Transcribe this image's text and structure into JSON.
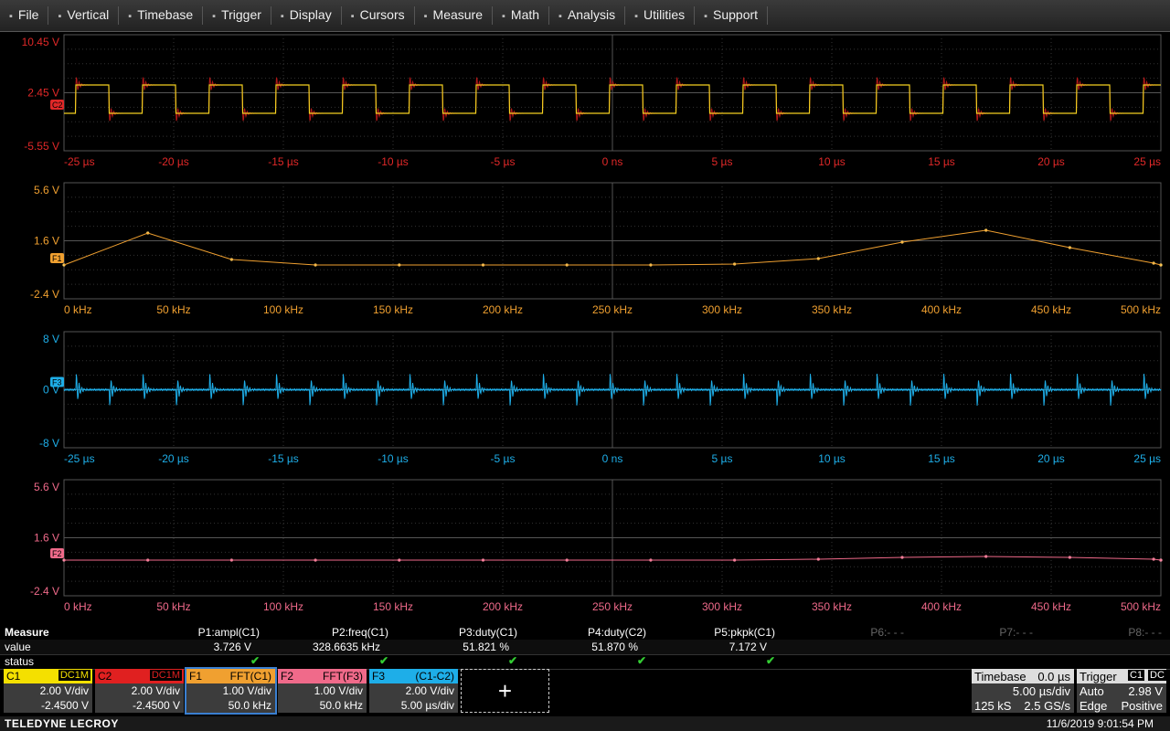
{
  "menu": [
    "File",
    "Vertical",
    "Timebase",
    "Trigger",
    "Display",
    "Cursors",
    "Measure",
    "Math",
    "Analysis",
    "Utilities",
    "Support"
  ],
  "panels": [
    {
      "trace_label": "C2",
      "y_labels": [
        "10.45 V",
        "2.45 V",
        "-5.55 V"
      ],
      "x_labels": [
        "-25 µs",
        "-20 µs",
        "-15 µs",
        "-10 µs",
        "-5 µs",
        "0 ns",
        "5 µs",
        "10 µs",
        "15 µs",
        "20 µs",
        "25 µs"
      ]
    },
    {
      "trace_label": "F1",
      "y_labels": [
        "5.6 V",
        "1.6 V",
        "-2.4 V"
      ],
      "x_labels": [
        "0 kHz",
        "50 kHz",
        "100 kHz",
        "150 kHz",
        "200 kHz",
        "250 kHz",
        "300 kHz",
        "350 kHz",
        "400 kHz",
        "450 kHz",
        "500 kHz"
      ]
    },
    {
      "trace_label": "F3",
      "y_labels": [
        "8 V",
        "0 V",
        "-8 V"
      ],
      "x_labels": [
        "-25 µs",
        "-20 µs",
        "-15 µs",
        "-10 µs",
        "-5 µs",
        "0 ns",
        "5 µs",
        "10 µs",
        "15 µs",
        "20 µs",
        "25 µs"
      ]
    },
    {
      "trace_label": "F2",
      "y_labels": [
        "5.6 V",
        "1.6 V",
        "-2.4 V"
      ],
      "x_labels": [
        "0 kHz",
        "50 kHz",
        "100 kHz",
        "150 kHz",
        "200 kHz",
        "250 kHz",
        "300 kHz",
        "350 kHz",
        "400 kHz",
        "450 kHz",
        "500 kHz"
      ]
    }
  ],
  "measure": {
    "title": "Measure",
    "row_labels": [
      "value",
      "status"
    ],
    "params": [
      "P1:ampl(C1)",
      "P2:freq(C1)",
      "P3:duty(C1)",
      "P4:duty(C2)",
      "P5:pkpk(C1)",
      "P6:- - -",
      "P7:- - -",
      "P8:- - -"
    ],
    "values": [
      "3.726 V",
      "328.6635 kHz",
      "51.821 %",
      "51.870 %",
      "7.172 V"
    ]
  },
  "channels": [
    {
      "name": "C1",
      "source": "DC1M",
      "scale": "2.00 V/div",
      "offset": "-2.4500 V"
    },
    {
      "name": "C2",
      "source": "DC1M",
      "scale": "2.00 V/div",
      "offset": "-2.4500 V"
    },
    {
      "name": "F1",
      "source": "FFT(C1)",
      "scale": "1.00 V/div",
      "offset": "50.0 kHz"
    },
    {
      "name": "F2",
      "source": "FFT(F3)",
      "scale": "1.00 V/div",
      "offset": "50.0 kHz"
    },
    {
      "name": "F3",
      "source": "(C1-C2)",
      "scale": "2.00 V/div",
      "offset": "5.00 µs/div"
    }
  ],
  "timebase": {
    "title": "Timebase",
    "delay": "0.0 µs",
    "scale": "5.00 µs/div",
    "samples": "125 kS",
    "rate": "2.5 GS/s"
  },
  "trigger": {
    "title": "Trigger",
    "source": "C1",
    "coupling": "DC",
    "mode": "Auto",
    "level": "2.98 V",
    "type": "Edge",
    "slope": "Positive"
  },
  "footer": {
    "brand": "TELEDYNE LECROY",
    "datetime": "11/6/2019 9:01:54 PM"
  }
}
